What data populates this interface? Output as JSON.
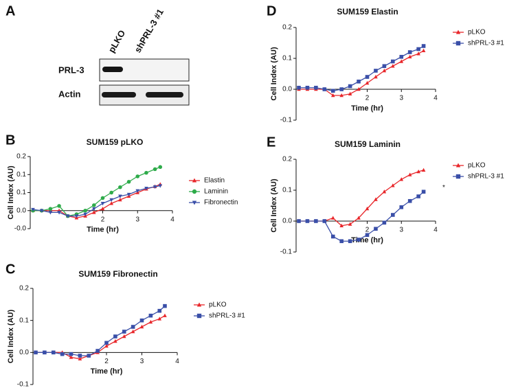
{
  "blot": {
    "panel": "A",
    "lanes": [
      "pLKO",
      "shPRL-3 #1"
    ],
    "rows": [
      "PRL-3",
      "Actin"
    ]
  },
  "chart_data": [
    {
      "panel": "B",
      "type": "line",
      "title": "SUM159 pLKO",
      "xlabel": "Time (hr)",
      "ylabel": "Cell Index (AU)",
      "x": [
        0,
        0.25,
        0.5,
        0.75,
        1,
        1.25,
        1.5,
        1.75,
        2,
        2.25,
        2.5,
        2.75,
        3,
        3.25,
        3.5,
        3.65
      ],
      "xlim": [
        0,
        4
      ],
      "xticks": [
        2,
        3,
        4
      ],
      "ylim": [
        -0.05,
        0.15
      ],
      "yticks": [
        {
          "value": -0.05,
          "label": "-0.0"
        },
        {
          "value": 0,
          "label": "0.0"
        },
        {
          "value": 0.05,
          "label": "0.1"
        },
        0.1,
        {
          "value": 0.15,
          "label": "0.2"
        }
      ],
      "series": [
        {
          "name": "Elastin",
          "color": "#e8262a",
          "marker": "triangle",
          "values": [
            0,
            0,
            0,
            0,
            -0.015,
            -0.02,
            -0.015,
            -0.005,
            0.005,
            0.02,
            0.03,
            0.04,
            0.05,
            0.06,
            0.067,
            0.073
          ]
        },
        {
          "name": "Laminin",
          "color": "#2eab4a",
          "marker": "circle",
          "values": [
            0,
            0,
            0.005,
            0.013,
            -0.015,
            -0.01,
            0,
            0.015,
            0.035,
            0.05,
            0.065,
            0.08,
            0.095,
            0.105,
            0.115,
            0.121
          ]
        },
        {
          "name": "Fibronectin",
          "color": "#3a4fa8",
          "marker": "triangle-down",
          "values": [
            0.003,
            0,
            -0.005,
            -0.005,
            -0.015,
            -0.015,
            -0.01,
            0.005,
            0.02,
            0.03,
            0.04,
            0.045,
            0.055,
            0.062,
            0.066,
            0.069
          ]
        }
      ]
    },
    {
      "panel": "C",
      "type": "line",
      "title": "SUM159 Fibronectin",
      "xlabel": "Time (hr)",
      "ylabel": "Cell Index (AU)",
      "x": [
        0,
        0.25,
        0.5,
        0.75,
        1,
        1.25,
        1.5,
        1.75,
        2,
        2.25,
        2.5,
        2.75,
        3,
        3.25,
        3.5,
        3.65
      ],
      "xlim": [
        0,
        4
      ],
      "xticks": [
        2,
        3,
        4
      ],
      "ylim": [
        -0.1,
        0.2
      ],
      "yticks": [
        -0.1,
        {
          "value": 0,
          "label": "0.0"
        },
        0.1,
        0.2
      ],
      "series": [
        {
          "name": "pLKO",
          "color": "#e8262a",
          "marker": "triangle",
          "values": [
            0,
            0,
            0,
            0,
            -0.015,
            -0.02,
            -0.01,
            0,
            0.02,
            0.035,
            0.05,
            0.065,
            0.08,
            0.095,
            0.105,
            0.115
          ]
        },
        {
          "name": "shPRL-3 #1",
          "color": "#3a4fa8",
          "marker": "square",
          "values": [
            0,
            0,
            0,
            -0.005,
            -0.005,
            -0.01,
            -0.01,
            0.005,
            0.03,
            0.05,
            0.065,
            0.08,
            0.1,
            0.115,
            0.13,
            0.145
          ]
        }
      ]
    },
    {
      "panel": "D",
      "type": "line",
      "title": "SUM159 Elastin",
      "xlabel": "Time (hr)",
      "ylabel": "Cell Index (AU)",
      "x": [
        0,
        0.25,
        0.5,
        0.75,
        1,
        1.25,
        1.5,
        1.75,
        2,
        2.25,
        2.5,
        2.75,
        3,
        3.25,
        3.5,
        3.65
      ],
      "xlim": [
        0,
        4
      ],
      "xticks": [
        2,
        3,
        4
      ],
      "ylim": [
        -0.1,
        0.2
      ],
      "yticks": [
        -0.1,
        {
          "value": 0,
          "label": "0.0"
        },
        0.1,
        0.2
      ],
      "series": [
        {
          "name": "pLKO",
          "color": "#e8262a",
          "marker": "triangle",
          "values": [
            0,
            0,
            0,
            0,
            -0.02,
            -0.02,
            -0.015,
            0,
            0.02,
            0.04,
            0.06,
            0.075,
            0.09,
            0.105,
            0.115,
            0.125
          ]
        },
        {
          "name": "shPRL-3 #1",
          "color": "#3a4fa8",
          "marker": "square",
          "values": [
            0.005,
            0.005,
            0.005,
            0,
            -0.005,
            0,
            0.01,
            0.025,
            0.04,
            0.06,
            0.075,
            0.09,
            0.105,
            0.12,
            0.13,
            0.14
          ]
        }
      ]
    },
    {
      "panel": "E",
      "type": "line",
      "title": "SUM159 Laminin",
      "xlabel": "Time (hr)",
      "ylabel": "Cell Index (AU)",
      "annotation": "*",
      "x": [
        0,
        0.25,
        0.5,
        0.75,
        1,
        1.25,
        1.5,
        1.75,
        2,
        2.25,
        2.5,
        2.75,
        3,
        3.25,
        3.5,
        3.65
      ],
      "xlim": [
        0,
        4
      ],
      "xticks": [
        2,
        3,
        4
      ],
      "ylim": [
        -0.1,
        0.2
      ],
      "yticks": [
        -0.1,
        {
          "value": 0,
          "label": "0.0"
        },
        0.1,
        0.2
      ],
      "series": [
        {
          "name": "pLKO",
          "color": "#e8262a",
          "marker": "triangle",
          "values": [
            0,
            0,
            0,
            0,
            0.01,
            -0.015,
            -0.01,
            0.01,
            0.04,
            0.07,
            0.095,
            0.115,
            0.135,
            0.15,
            0.16,
            0.165
          ]
        },
        {
          "name": "shPRL-3 #1",
          "color": "#3a4fa8",
          "marker": "square",
          "values": [
            0,
            0,
            0,
            0,
            -0.05,
            -0.065,
            -0.065,
            -0.06,
            -0.045,
            -0.025,
            -0.005,
            0.02,
            0.045,
            0.065,
            0.08,
            0.095
          ]
        }
      ]
    }
  ]
}
